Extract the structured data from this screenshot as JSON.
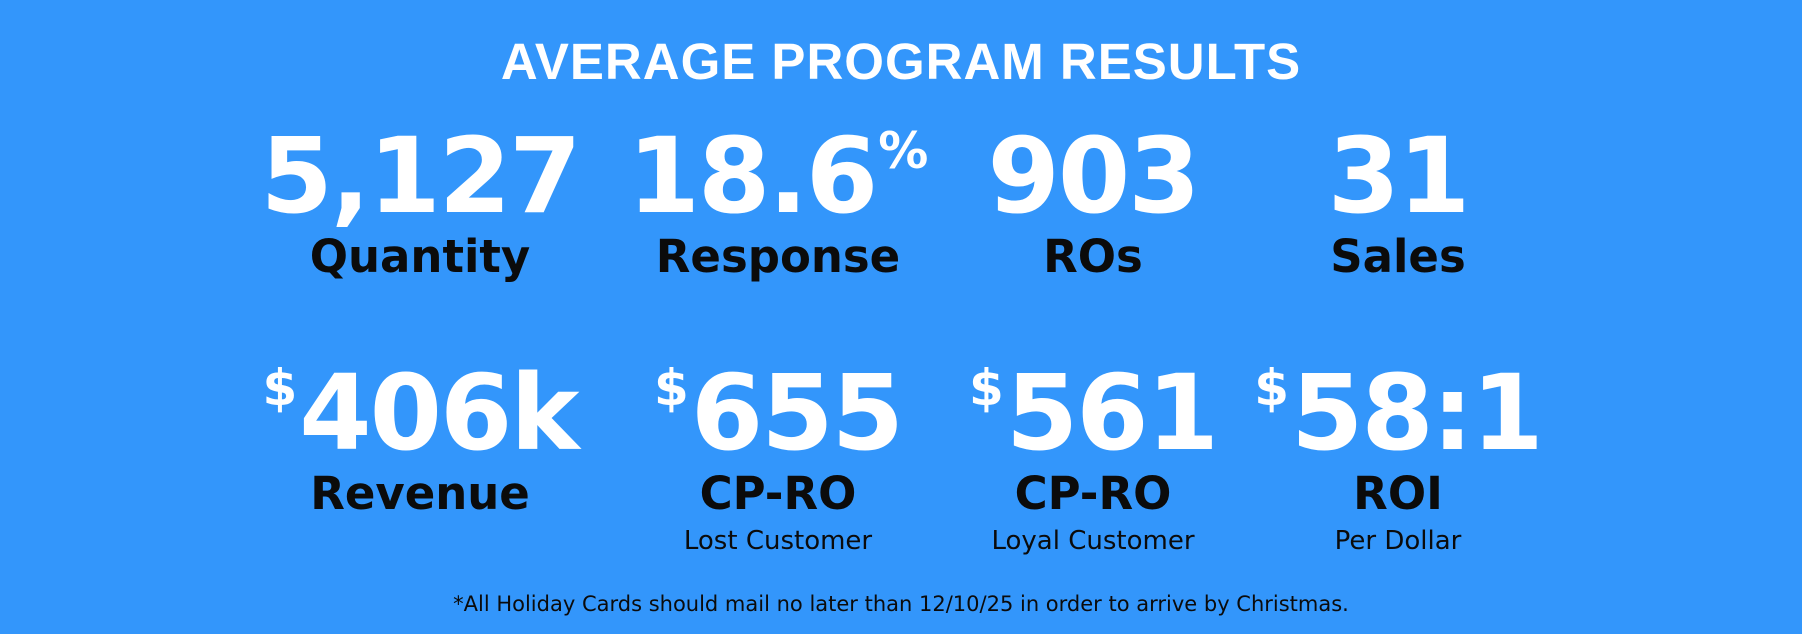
{
  "title": "AVERAGE PROGRAM RESULTS",
  "row1": [
    {
      "prefix": "",
      "value": "5,127",
      "suffix": "",
      "label": "Quantity"
    },
    {
      "prefix": "",
      "value": "18.6",
      "suffix": "%",
      "label": "Response"
    },
    {
      "prefix": "",
      "value": "903",
      "suffix": "",
      "label": "ROs"
    },
    {
      "prefix": "",
      "value": "31",
      "suffix": "",
      "label": "Sales"
    }
  ],
  "row2": [
    {
      "prefix": "$",
      "value": "406k",
      "suffix": "",
      "label": "Revenue",
      "sublabel": ""
    },
    {
      "prefix": "$",
      "value": "655",
      "suffix": "",
      "label": "CP-RO",
      "sublabel": "Lost Customer"
    },
    {
      "prefix": "$",
      "value": "561",
      "suffix": "",
      "label": "CP-RO",
      "sublabel": "Loyal Customer"
    },
    {
      "prefix": "$",
      "value": "58:1",
      "suffix": "",
      "label": "ROI",
      "sublabel": "Per Dollar"
    }
  ],
  "footnote": "*All Holiday Cards should mail no later than 12/10/25 in order to arrive by Christmas.",
  "colors": {
    "background": "#3396fb",
    "value_text": "#ffffff",
    "label_text": "#0b0b0b"
  }
}
